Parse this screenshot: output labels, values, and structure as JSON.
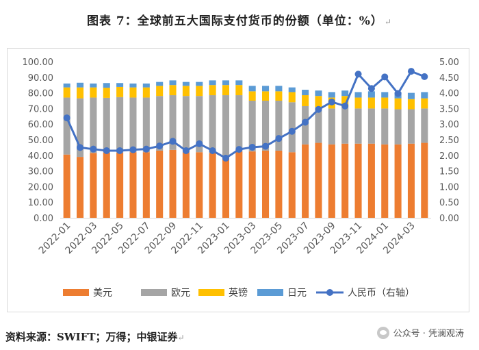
{
  "title": "图表 7：全球前五大国际支付货币的份额（单位：%）",
  "title_mark": "↵",
  "source": "资料来源：SWIFT；万得；中银证券",
  "source_mark": "↵",
  "watermark": "公众号 · 凭澜观涛",
  "watermark_icon": "wechat-icon",
  "chart_data": {
    "type": "bar",
    "stacked": true,
    "categories": [
      "2022-01",
      "2022-02",
      "2022-03",
      "2022-04",
      "2022-05",
      "2022-06",
      "2022-07",
      "2022-08",
      "2022-09",
      "2022-10",
      "2022-11",
      "2022-12",
      "2023-01",
      "2023-02",
      "2023-03",
      "2023-04",
      "2023-05",
      "2023-06",
      "2023-07",
      "2023-08",
      "2023-09",
      "2023-10",
      "2023-11",
      "2023-12",
      "2024-01",
      "2024-02",
      "2024-03",
      "2024-04"
    ],
    "tick_labels": [
      "2022-01",
      "2022-03",
      "2022-05",
      "2022-07",
      "2022-09",
      "2022-11",
      "2023-01",
      "2023-03",
      "2023-05",
      "2023-07",
      "2023-09",
      "2023-11",
      "2024-01",
      "2024-03"
    ],
    "series": [
      {
        "name": "美元",
        "color": "#ED7D31",
        "axis": "left",
        "values": [
          40.5,
          39.0,
          41.5,
          41.8,
          41.8,
          42.0,
          42.0,
          43.0,
          43.5,
          42.0,
          42.0,
          41.5,
          39.5,
          42.5,
          42.5,
          43.0,
          43.0,
          42.0,
          47.0,
          48.0,
          47.0,
          47.5,
          47.5,
          47.5,
          47.0,
          47.0,
          47.5,
          48.0
        ]
      },
      {
        "name": "欧元",
        "color": "#A5A5A5",
        "axis": "left",
        "values": [
          36.5,
          37.5,
          35.5,
          35.0,
          35.5,
          35.0,
          35.0,
          35.0,
          35.0,
          36.0,
          36.0,
          37.0,
          39.0,
          36.0,
          32.5,
          32.0,
          32.0,
          32.0,
          24.5,
          23.0,
          23.0,
          23.5,
          22.5,
          22.5,
          23.0,
          22.5,
          22.0,
          22.0
        ]
      },
      {
        "name": "英镑",
        "color": "#FFC000",
        "axis": "left",
        "values": [
          6.5,
          7.0,
          6.5,
          6.5,
          6.5,
          6.5,
          6.5,
          6.5,
          6.5,
          6.5,
          6.5,
          6.5,
          6.5,
          6.5,
          6.0,
          6.0,
          6.0,
          6.5,
          7.0,
          7.0,
          7.0,
          7.0,
          7.0,
          7.0,
          7.0,
          7.0,
          6.5,
          6.5
        ]
      },
      {
        "name": "日元",
        "color": "#5B9BD5",
        "axis": "left",
        "values": [
          2.5,
          3.0,
          2.5,
          3.0,
          2.5,
          2.5,
          2.5,
          2.5,
          3.0,
          2.5,
          2.5,
          3.0,
          3.0,
          3.0,
          3.5,
          3.5,
          3.5,
          3.0,
          3.5,
          3.5,
          3.5,
          3.5,
          3.5,
          4.0,
          3.5,
          4.0,
          4.0,
          4.0
        ]
      },
      {
        "name": "人民币（右轴）",
        "color": "#4472C4",
        "axis": "right",
        "kind": "line",
        "values": [
          3.2,
          2.25,
          2.2,
          2.15,
          2.15,
          2.18,
          2.2,
          2.3,
          2.45,
          2.15,
          2.37,
          2.15,
          1.91,
          2.19,
          2.26,
          2.29,
          2.54,
          2.77,
          3.06,
          3.47,
          3.71,
          3.58,
          4.6,
          4.14,
          4.51,
          3.98,
          4.69,
          4.52
        ]
      }
    ],
    "ylim": [
      0,
      100
    ],
    "y_ticks": [
      "0.00",
      "10.00",
      "20.00",
      "30.00",
      "40.00",
      "50.00",
      "60.00",
      "70.00",
      "80.00",
      "90.00",
      "100.00"
    ],
    "y2lim": [
      0,
      5
    ],
    "y2_ticks": [
      "0.00",
      "0.50",
      "1.00",
      "1.50",
      "2.00",
      "2.50",
      "3.00",
      "3.50",
      "4.00",
      "4.50",
      "5.00"
    ],
    "legend_position": "bottom",
    "grid": false
  }
}
